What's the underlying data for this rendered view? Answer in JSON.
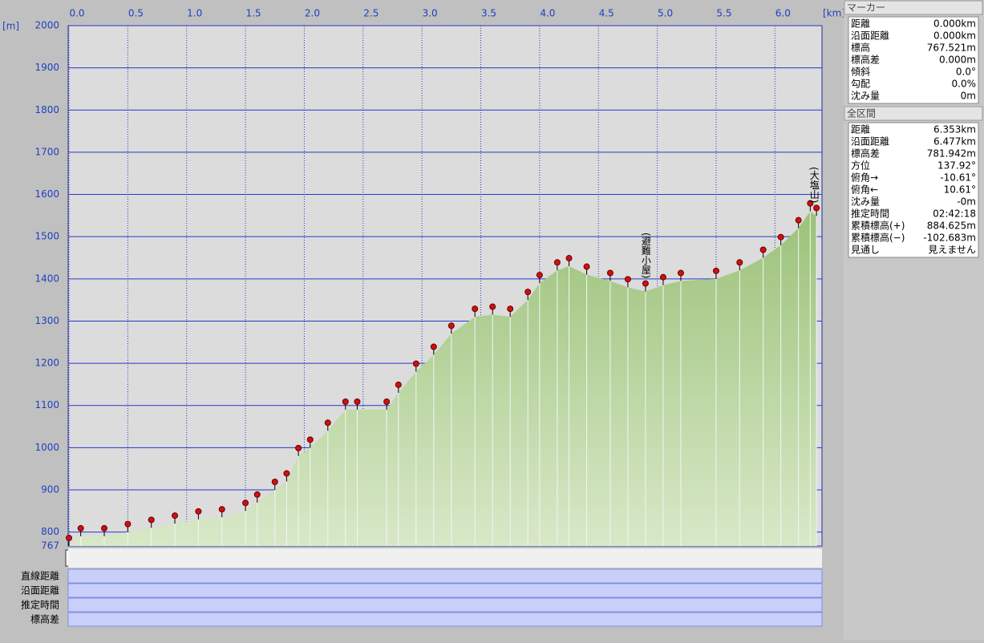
{
  "chart_data": {
    "type": "area",
    "x_unit": "[km]",
    "y_unit": "[m]",
    "x": [
      0,
      0.1,
      0.3,
      0.5,
      0.7,
      0.9,
      1.1,
      1.3,
      1.5,
      1.6,
      1.75,
      1.85,
      1.95,
      2.05,
      2.2,
      2.35,
      2.45,
      2.7,
      2.8,
      2.95,
      3.1,
      3.25,
      3.45,
      3.6,
      3.75,
      3.9,
      4.0,
      4.15,
      4.25,
      4.4,
      4.6,
      4.75,
      4.9,
      5.05,
      5.2,
      5.5,
      5.7,
      5.9,
      6.05,
      6.2,
      6.3,
      6.353
    ],
    "series": [
      {
        "color": "#9cc27a",
        "values": [
          767,
          790,
          790,
          800,
          810,
          820,
          830,
          835,
          850,
          870,
          900,
          920,
          980,
          1000,
          1040,
          1090,
          1090,
          1090,
          1130,
          1180,
          1220,
          1270,
          1310,
          1315,
          1310,
          1350,
          1390,
          1420,
          1430,
          1410,
          1395,
          1380,
          1370,
          1385,
          1395,
          1400,
          1420,
          1450,
          1480,
          1520,
          1560,
          1549
        ]
      }
    ],
    "xlim": [
      0,
      6.4
    ],
    "ylim": [
      767,
      2000
    ],
    "xticks": [
      {
        "value": 0,
        "label": "0.0"
      },
      0.5,
      {
        "value": 1,
        "label": "1.0"
      },
      1.5,
      {
        "value": 2,
        "label": "2.0"
      },
      2.5,
      {
        "value": 3,
        "label": "3.0"
      },
      3.5,
      {
        "value": 4,
        "label": "4.0"
      },
      4.5,
      {
        "value": 5,
        "label": "5.0"
      },
      5.5,
      {
        "value": 6,
        "label": "6.0"
      }
    ],
    "yticks": [
      767,
      800,
      900,
      1000,
      1100,
      1200,
      1300,
      1400,
      1500,
      1600,
      1700,
      1800,
      1900,
      2000
    ],
    "annotations": [
      {
        "text": "(避難小屋)",
        "x": 4.9
      },
      {
        "text": "(大塩山)",
        "x": 6.33
      }
    ],
    "grid": true
  },
  "table_rows": [
    "直線距離",
    "沿面距離",
    "推定時間",
    "標高差"
  ],
  "marker_panel": {
    "title": "マーカー",
    "rows": [
      [
        "距離",
        "0.000km"
      ],
      [
        "沿面距離",
        "0.000km"
      ],
      [
        "標高",
        "767.521m"
      ],
      [
        "標高差",
        "0.000m"
      ],
      [
        "傾斜",
        "0.0°"
      ],
      [
        "勾配",
        "0.0%"
      ],
      [
        "沈み量",
        "0m"
      ]
    ]
  },
  "total_panel": {
    "title": "全区間",
    "rows": [
      [
        "距離",
        "6.353km"
      ],
      [
        "沿面距離",
        "6.477km"
      ],
      [
        "標高差",
        "781.942m"
      ],
      [
        "方位",
        "137.92°"
      ],
      [
        "俯角→",
        "-10.61°"
      ],
      [
        "俯角←",
        "10.61°"
      ],
      [
        "沈み量",
        "-0m"
      ],
      [
        "推定時間",
        "02:42:18"
      ],
      [
        "累積標高(+)",
        "884.625m"
      ],
      [
        "累積標高(−)",
        "-102.683m"
      ],
      [
        "見通し",
        "見えません"
      ]
    ]
  }
}
